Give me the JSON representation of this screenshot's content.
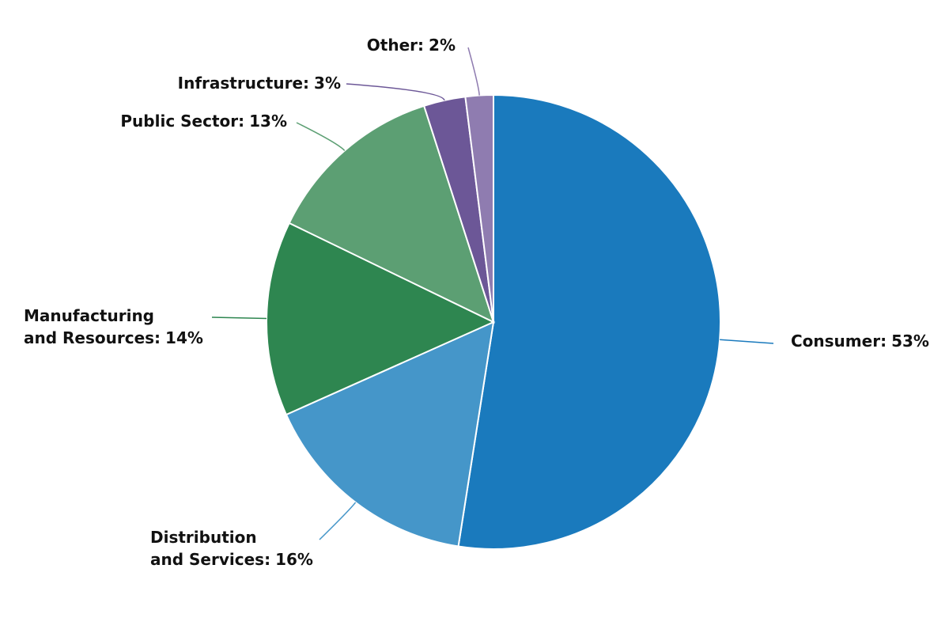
{
  "chart_data": {
    "type": "pie",
    "categories": [
      "Consumer:",
      "Distribution\nand Services:",
      "Manufacturing\nand Resources:",
      "Public Sector:",
      "Infrastructure:",
      "Other:"
    ],
    "values": [
      53,
      16,
      14,
      13,
      3,
      2
    ],
    "value_labels": [
      "53%",
      "16%",
      "14%",
      "13%",
      "3%",
      "2%"
    ],
    "colors": [
      "#1a7abd",
      "#4596c9",
      "#2e8650",
      "#5c9f73",
      "#6c5797",
      "#8f7cb0"
    ]
  }
}
